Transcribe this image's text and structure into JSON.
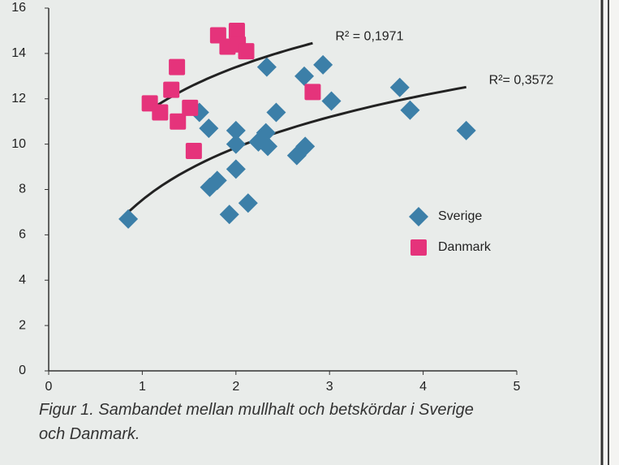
{
  "chart_data": {
    "type": "scatter",
    "caption": "Figur 1. Sambandet mellan mullhalt och betskördar i Sverige och Danmark.",
    "xlim": [
      0,
      5
    ],
    "xticks": [
      0,
      1,
      2,
      3,
      4,
      5
    ],
    "ylim": [
      0,
      16
    ],
    "yticks": [
      0,
      2,
      4,
      6,
      8,
      10,
      12,
      14,
      16
    ],
    "legend": "right",
    "trendline": "logarithmic",
    "series": [
      {
        "name": "Sverige",
        "color": "#3c7fa8",
        "marker": "diamond",
        "trend_label": "R²= 0,3572",
        "x": [
          0.85,
          1.61,
          1.71,
          1.72,
          1.8,
          1.93,
          2.0,
          2.0,
          2.0,
          2.13,
          2.24,
          2.32,
          2.34,
          2.33,
          2.43,
          2.65,
          2.74,
          2.73,
          2.93,
          3.02,
          3.75,
          3.86,
          4.46
        ],
        "values": [
          6.7,
          11.4,
          10.7,
          8.1,
          8.4,
          6.9,
          10.6,
          10.0,
          8.9,
          7.4,
          10.1,
          10.5,
          9.9,
          13.4,
          11.4,
          9.5,
          9.9,
          13.0,
          13.5,
          11.9,
          12.5,
          11.5,
          10.6
        ]
      },
      {
        "name": "Danmark",
        "color": "#e5337b",
        "marker": "square",
        "trend_label": "R² = 0,1971",
        "x": [
          1.08,
          1.19,
          1.31,
          1.37,
          1.38,
          1.51,
          1.55,
          1.81,
          1.91,
          2.01,
          2.02,
          2.11,
          2.82
        ],
        "values": [
          11.8,
          11.4,
          12.4,
          13.4,
          11.0,
          11.6,
          9.7,
          14.8,
          14.3,
          15.0,
          14.4,
          14.1,
          12.3
        ]
      }
    ]
  }
}
